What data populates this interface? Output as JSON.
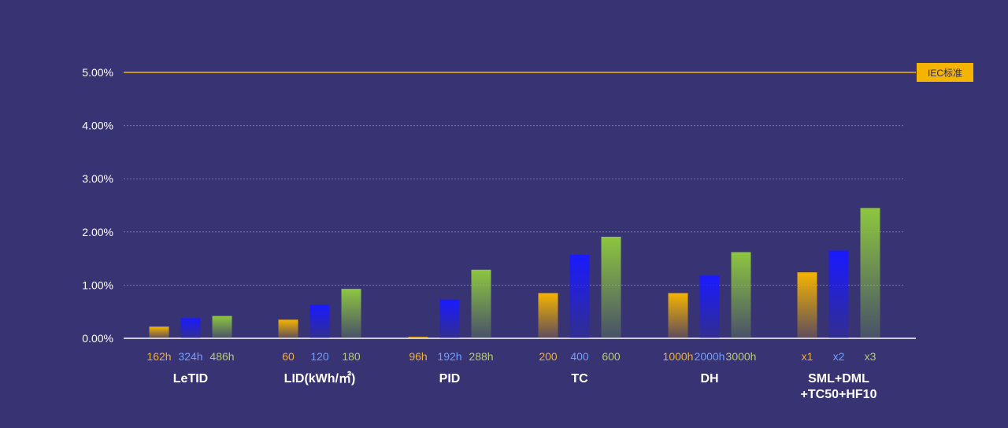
{
  "chart_data": {
    "type": "bar",
    "title": "",
    "xlabel": "",
    "ylabel": "",
    "ylim": [
      0,
      5
    ],
    "y_ticks": [
      "0.00%",
      "1.00%",
      "2.00%",
      "3.00%",
      "4.00%",
      "5.00%"
    ],
    "y_tick_values": [
      0,
      1,
      2,
      3,
      4,
      5
    ],
    "grid": true,
    "reference_line": {
      "value": 5.0,
      "label": "IEC标准",
      "color": "#F5B400"
    },
    "series_colors": [
      "#F5B400",
      "#1A1AFF",
      "#8DC63F"
    ],
    "sub_label_colors": [
      "#F0B030",
      "#6FA0FF",
      "#B5CC70"
    ],
    "groups": [
      {
        "label_lines": [
          "LeTID"
        ],
        "sub_labels": [
          "162h",
          "324h",
          "486h"
        ],
        "values": [
          0.22,
          0.38,
          0.42
        ]
      },
      {
        "label_lines": [
          "LID(kWh/㎡)"
        ],
        "sub_labels": [
          "60",
          "120",
          "180"
        ],
        "values": [
          0.35,
          0.63,
          0.93
        ]
      },
      {
        "label_lines": [
          "PID"
        ],
        "sub_labels": [
          "96h",
          "192h",
          "288h"
        ],
        "values": [
          0.03,
          0.73,
          1.29
        ]
      },
      {
        "label_lines": [
          "TC"
        ],
        "sub_labels": [
          "200",
          "400",
          "600"
        ],
        "values": [
          0.85,
          1.57,
          1.91
        ]
      },
      {
        "label_lines": [
          "DH"
        ],
        "sub_labels": [
          "1000h",
          "2000h",
          "3000h"
        ],
        "values": [
          0.85,
          1.18,
          1.62
        ]
      },
      {
        "label_lines": [
          "SML+DML",
          "+TC50+HF10"
        ],
        "sub_labels": [
          "x1",
          "x2",
          "x3"
        ],
        "values": [
          1.24,
          1.65,
          2.45
        ]
      }
    ]
  }
}
